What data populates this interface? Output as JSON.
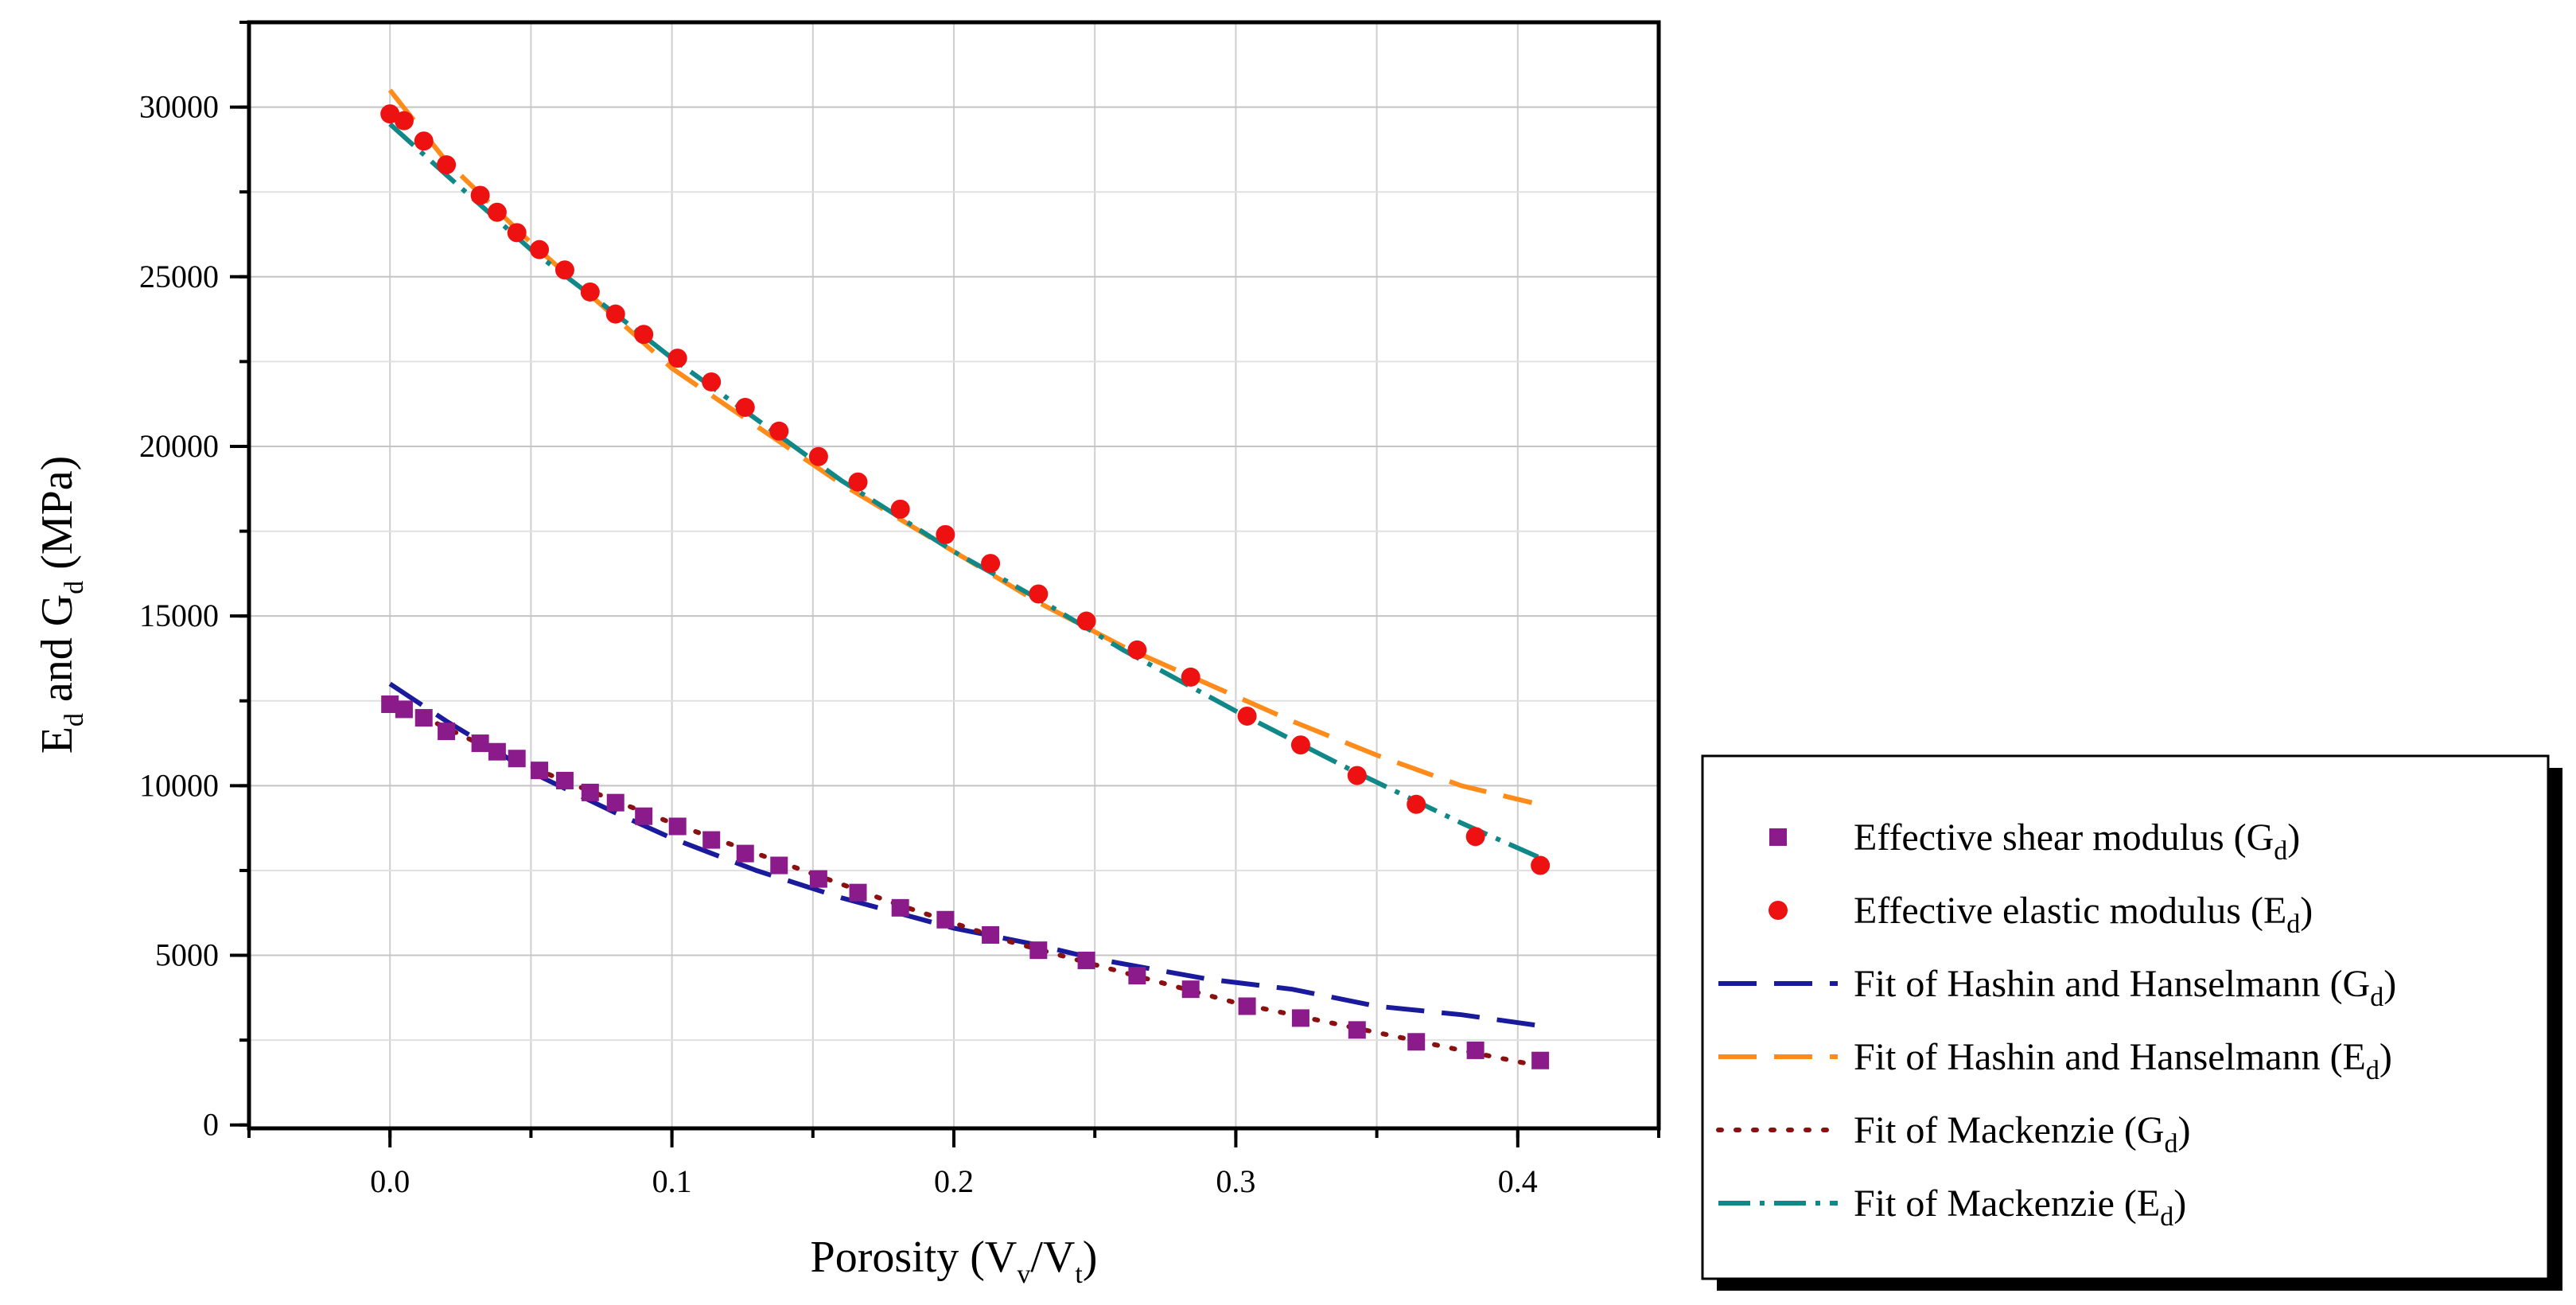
{
  "chart_data": {
    "type": "scatter",
    "title": "",
    "xlabel": {
      "main": "Porosity (V",
      "sub1": "v",
      "mid": "/V",
      "sub2": "t",
      "end": ")"
    },
    "ylabel": {
      "a": "E",
      "a_sub": "d",
      "b": " and G",
      "b_sub": "d",
      "c": " (MPa)"
    },
    "xlim": [
      -0.05,
      0.45
    ],
    "ylim": [
      -100,
      32500
    ],
    "x_ticks": [
      0.0,
      0.1,
      0.2,
      0.3,
      0.4
    ],
    "x_tick_labels": [
      "0.0",
      "0.1",
      "0.2",
      "0.3",
      "0.4"
    ],
    "y_ticks": [
      0,
      5000,
      10000,
      15000,
      20000,
      25000,
      30000
    ],
    "y_tick_labels": [
      "0",
      "5000",
      "10000",
      "15000",
      "20000",
      "25000",
      "30000"
    ],
    "grid": true,
    "legend_position": "outside-right-bottom",
    "series": [
      {
        "name": "Effective shear modulus (G_d)",
        "label": {
          "text": "Effective shear modulus (G",
          "sub": "d",
          "end": ")"
        },
        "kind": "scatter",
        "marker": "square",
        "color": "#8b1a8b",
        "x": [
          0.0,
          0.005,
          0.012,
          0.02,
          0.032,
          0.038,
          0.045,
          0.053,
          0.062,
          0.071,
          0.08,
          0.09,
          0.102,
          0.114,
          0.126,
          0.138,
          0.152,
          0.166,
          0.181,
          0.197,
          0.213,
          0.23,
          0.247,
          0.265,
          0.284,
          0.304,
          0.323,
          0.343,
          0.364,
          0.385,
          0.408
        ],
        "y": [
          12400,
          12250,
          12000,
          11600,
          11250,
          11000,
          10800,
          10450,
          10150,
          9800,
          9500,
          9100,
          8800,
          8400,
          8000,
          7650,
          7250,
          6850,
          6400,
          6050,
          5600,
          5150,
          4850,
          4400,
          4000,
          3500,
          3150,
          2800,
          2450,
          2200,
          1900
        ]
      },
      {
        "name": "Effective elastic modulus (E_d)",
        "label": {
          "text": "Effective elastic modulus (E",
          "sub": "d",
          "end": ")"
        },
        "kind": "scatter",
        "marker": "circle",
        "color": "#ee1111",
        "x": [
          0.0,
          0.005,
          0.012,
          0.02,
          0.032,
          0.038,
          0.045,
          0.053,
          0.062,
          0.071,
          0.08,
          0.09,
          0.102,
          0.114,
          0.126,
          0.138,
          0.152,
          0.166,
          0.181,
          0.197,
          0.213,
          0.23,
          0.247,
          0.265,
          0.284,
          0.304,
          0.323,
          0.343,
          0.364,
          0.385,
          0.408
        ],
        "y": [
          29800,
          29600,
          29000,
          28300,
          27400,
          26900,
          26300,
          25800,
          25200,
          24550,
          23900,
          23300,
          22600,
          21900,
          21150,
          20450,
          19700,
          18950,
          18150,
          17400,
          16550,
          15650,
          14850,
          14000,
          13200,
          12050,
          11200,
          10300,
          9450,
          8500,
          7650
        ]
      },
      {
        "name": "Fit of Hashin and Hanselmann (G_d)",
        "label": {
          "text": "Fit of Hashin and Hanselmann (G",
          "sub": "d",
          "end": ")"
        },
        "kind": "line",
        "dash": "48 22",
        "color": "#1a1a9c",
        "x": [
          0.0,
          0.02,
          0.05,
          0.08,
          0.1,
          0.13,
          0.16,
          0.2,
          0.23,
          0.25,
          0.27,
          0.29,
          0.32,
          0.35,
          0.38,
          0.41
        ],
        "y": [
          13000,
          11900,
          10400,
          9200,
          8450,
          7500,
          6700,
          5800,
          5300,
          4900,
          4600,
          4300,
          4000,
          3500,
          3250,
          2900
        ]
      },
      {
        "name": "Fit of Hashin and Hanselmann (E_d)",
        "label": {
          "text": "Fit of Hashin and Hanselmann (E",
          "sub": "d",
          "end": ")"
        },
        "kind": "line",
        "dash": "48 22",
        "color": "#ff8c1a",
        "x": [
          0.0,
          0.02,
          0.05,
          0.08,
          0.1,
          0.13,
          0.16,
          0.2,
          0.23,
          0.26,
          0.29,
          0.32,
          0.35,
          0.38,
          0.405
        ],
        "y": [
          30500,
          28400,
          26000,
          23800,
          22300,
          20600,
          18900,
          16900,
          15400,
          14100,
          13000,
          11900,
          10900,
          10000,
          9500
        ]
      },
      {
        "name": "Fit of Mackenzie (G_d)",
        "label": {
          "text": "Fit of Mackenzie (G",
          "sub": "d",
          "end": ")"
        },
        "kind": "line",
        "dash": "4 18",
        "color": "#8b1010",
        "x": [
          0.0,
          0.03,
          0.06,
          0.1,
          0.14,
          0.18,
          0.22,
          0.26,
          0.3,
          0.34,
          0.38,
          0.41
        ],
        "y": [
          12500,
          11300,
          10200,
          8900,
          7700,
          6500,
          5400,
          4500,
          3600,
          2900,
          2200,
          1700
        ]
      },
      {
        "name": "Fit of Mackenzie (E_d)",
        "label": {
          "text": "Fit of Mackenzie (E",
          "sub": "d",
          "end": ")"
        },
        "kind": "line",
        "dash": "40 12 6 12",
        "color": "#118888",
        "x": [
          0.0,
          0.02,
          0.05,
          0.08,
          0.1,
          0.13,
          0.16,
          0.2,
          0.23,
          0.26,
          0.3,
          0.34,
          0.38,
          0.41
        ],
        "y": [
          29500,
          28000,
          25800,
          23900,
          22600,
          20800,
          19000,
          16900,
          15500,
          14000,
          12200,
          10500,
          8900,
          7800
        ]
      }
    ]
  }
}
